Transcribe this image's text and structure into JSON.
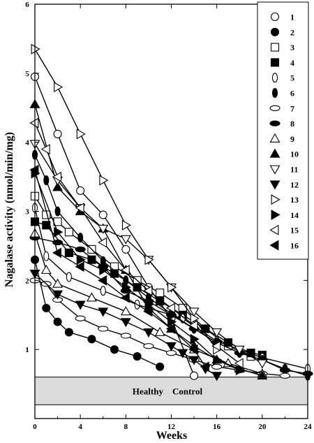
{
  "chart_data": {
    "type": "line",
    "title": "",
    "xlabel": "Weeks",
    "ylabel": "Nagalase activity (nmol/min/mg)",
    "xlim": [
      0,
      24
    ],
    "ylim": [
      0,
      6
    ],
    "x_ticks": [
      0,
      4,
      8,
      12,
      16,
      20,
      24
    ],
    "y_ticks": [
      1,
      2,
      3,
      4,
      5,
      6
    ],
    "grid": false,
    "legend_position": "top-right",
    "reference_band": {
      "label": "Healthy    Control",
      "y_range": [
        0.2,
        0.6
      ]
    },
    "series": [
      {
        "name": "1",
        "marker": "circle-open",
        "x": [
          0,
          2,
          4,
          6,
          8,
          10,
          12,
          14
        ],
        "y": [
          4.95,
          4.12,
          3.3,
          2.95,
          2.45,
          1.9,
          1.45,
          0.62
        ]
      },
      {
        "name": "2",
        "marker": "circle-filled",
        "x": [
          0,
          1,
          2,
          3,
          5,
          7,
          9,
          11
        ],
        "y": [
          2.3,
          1.6,
          1.4,
          1.25,
          1.15,
          1.0,
          0.9,
          0.75
        ]
      },
      {
        "name": "3",
        "marker": "square-open",
        "x": [
          0,
          1,
          2,
          3,
          5,
          7,
          9,
          11,
          13,
          15,
          17,
          19
        ],
        "y": [
          3.22,
          2.95,
          2.85,
          2.7,
          2.45,
          2.2,
          2.0,
          1.82,
          1.6,
          1.3,
          1.05,
          0.9
        ]
      },
      {
        "name": "4",
        "marker": "square-filled",
        "x": [
          0,
          1,
          3,
          5,
          7,
          9,
          11,
          13,
          15,
          17,
          19,
          20
        ],
        "y": [
          2.85,
          2.8,
          2.4,
          2.3,
          2.1,
          1.9,
          1.7,
          1.5,
          1.3,
          1.1,
          0.95,
          0.92
        ]
      },
      {
        "name": "5",
        "marker": "ellipse-vertical-open",
        "x": [
          0,
          1,
          3,
          6,
          9,
          13,
          16,
          20,
          24
        ],
        "y": [
          3.05,
          2.35,
          2.05,
          1.85,
          1.65,
          1.45,
          1.12,
          0.88,
          0.72
        ]
      },
      {
        "name": "6",
        "marker": "ellipse-vertical-filled",
        "x": [
          0,
          1,
          2,
          4,
          6,
          8,
          10,
          12,
          14,
          16,
          18,
          20,
          22,
          24
        ],
        "y": [
          3.82,
          3.45,
          3.0,
          2.62,
          2.28,
          2.0,
          1.75,
          1.52,
          1.3,
          1.1,
          0.95,
          0.85,
          0.72,
          0.62
        ]
      },
      {
        "name": "7",
        "marker": "ellipse-horizontal-open",
        "x": [
          0,
          1,
          2,
          4,
          6,
          8,
          10,
          12,
          14,
          16,
          18,
          20,
          22
        ],
        "y": [
          2.0,
          1.95,
          1.72,
          1.45,
          1.3,
          1.2,
          1.05,
          0.95,
          0.85,
          0.75,
          0.7,
          0.65,
          0.62
        ]
      },
      {
        "name": "8",
        "marker": "ellipse-horizontal-filled",
        "x": [
          0,
          2,
          4,
          6,
          8,
          10,
          12,
          14,
          16,
          18,
          20,
          22,
          24
        ],
        "y": [
          2.62,
          2.55,
          2.45,
          2.2,
          1.85,
          1.7,
          1.5,
          1.3,
          1.1,
          0.95,
          0.85,
          0.7,
          0.65
        ]
      },
      {
        "name": "9",
        "marker": "triangle-up-open",
        "x": [
          0,
          1,
          2,
          5,
          8,
          11,
          14,
          17,
          20
        ],
        "y": [
          2.68,
          2.15,
          1.95,
          1.75,
          1.55,
          1.25,
          1.0,
          0.8,
          0.65
        ]
      },
      {
        "name": "10",
        "marker": "triangle-up-filled",
        "x": [
          0,
          2,
          4,
          6,
          8,
          10,
          12,
          14,
          16,
          18,
          20
        ],
        "y": [
          4.55,
          3.35,
          3.0,
          2.75,
          2.15,
          1.6,
          1.3,
          1.05,
          0.85,
          0.72,
          0.62
        ]
      },
      {
        "name": "11",
        "marker": "triangle-down-open",
        "x": [
          0,
          2,
          4,
          6,
          8,
          10,
          12,
          14,
          16,
          18,
          20
        ],
        "y": [
          3.98,
          3.45,
          3.05,
          2.75,
          2.6,
          2.3,
          1.9,
          1.55,
          1.25,
          1.0,
          0.8
        ]
      },
      {
        "name": "12",
        "marker": "triangle-down-filled",
        "x": [
          0,
          2,
          4,
          6,
          8,
          10,
          12,
          13,
          14,
          15,
          16
        ],
        "y": [
          2.1,
          1.8,
          1.65,
          1.55,
          1.4,
          1.25,
          1.05,
          0.95,
          0.85,
          0.72,
          0.62
        ]
      },
      {
        "name": "13",
        "marker": "triangle-right-open",
        "x": [
          0,
          2,
          4,
          6,
          8,
          10,
          12,
          14,
          16
        ],
        "y": [
          5.35,
          4.8,
          4.12,
          3.45,
          2.8,
          2.3,
          1.9,
          1.45,
          1.0
        ]
      },
      {
        "name": "14",
        "marker": "triangle-right-filled",
        "x": [
          0,
          2,
          4,
          6,
          8,
          10,
          12,
          14,
          16,
          18
        ],
        "y": [
          3.55,
          2.7,
          2.3,
          2.15,
          1.9,
          1.65,
          1.4,
          1.15,
          0.85,
          0.7
        ]
      },
      {
        "name": "15",
        "marker": "triangle-left-open",
        "x": [
          0,
          1,
          2,
          4,
          6,
          8,
          10,
          12,
          14,
          16,
          18
        ],
        "y": [
          4.28,
          3.9,
          3.5,
          3.05,
          2.55,
          2.15,
          1.85,
          1.6,
          1.35,
          1.05,
          0.8
        ]
      },
      {
        "name": "16",
        "marker": "triangle-left-filled",
        "x": [
          0,
          2,
          4,
          6,
          8,
          10,
          12,
          14,
          15
        ],
        "y": [
          3.6,
          2.4,
          2.2,
          2.0,
          1.75,
          1.55,
          1.3,
          1.0,
          0.75
        ]
      }
    ]
  }
}
